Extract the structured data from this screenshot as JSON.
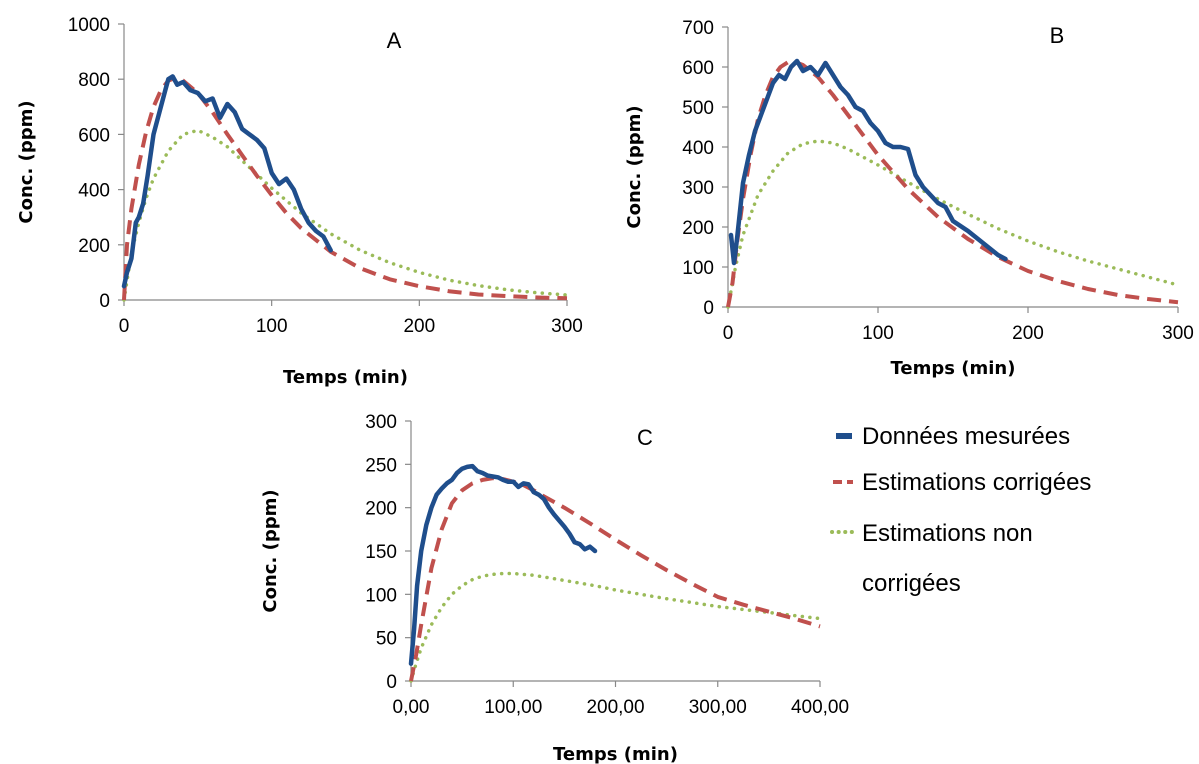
{
  "colors": {
    "measured": "#1f4e8c",
    "corrected": "#c0504d",
    "uncorrected": "#9bbb59"
  },
  "legend": {
    "placement": "right of panel C",
    "items": [
      {
        "key": "measured",
        "label": "Données mesurées"
      },
      {
        "key": "corrected",
        "label": "Estimations corrigées"
      },
      {
        "key": "uncorrected",
        "label": "Estimations non",
        "label_line2": "corrigées"
      }
    ]
  },
  "chart_data": [
    {
      "type": "line",
      "panel": "A",
      "xlabel": "Temps (min)",
      "ylabel": "Conc. (ppm)",
      "xlim": [
        0,
        300
      ],
      "ylim": [
        0,
        1000
      ],
      "xticks": [
        0,
        100,
        200,
        300
      ],
      "xtick_labels": [
        "0",
        "100",
        "200",
        "300"
      ],
      "yticks": [
        0,
        200,
        400,
        600,
        800,
        1000
      ],
      "ytick_labels": [
        "0",
        "200",
        "400",
        "600",
        "800",
        "1000"
      ],
      "grid": false,
      "series": [
        {
          "key": "measured",
          "style": "solid",
          "x": [
            0,
            2,
            5,
            8,
            10,
            13,
            16,
            20,
            24,
            28,
            30,
            33,
            36,
            40,
            45,
            50,
            55,
            60,
            65,
            70,
            75,
            80,
            85,
            90,
            95,
            100,
            105,
            110,
            115,
            120,
            125,
            130,
            135,
            140
          ],
          "y": [
            50,
            100,
            150,
            280,
            300,
            350,
            450,
            600,
            680,
            760,
            800,
            810,
            780,
            790,
            760,
            750,
            720,
            730,
            660,
            710,
            680,
            620,
            600,
            580,
            550,
            460,
            420,
            440,
            400,
            330,
            280,
            250,
            230,
            180
          ]
        },
        {
          "key": "corrected",
          "style": "dashed",
          "x": [
            0,
            2,
            5,
            10,
            15,
            20,
            25,
            30,
            35,
            40,
            50,
            60,
            70,
            80,
            90,
            100,
            110,
            120,
            140,
            160,
            180,
            200,
            220,
            240,
            260,
            280,
            300
          ],
          "y": [
            0,
            200,
            330,
            490,
            610,
            700,
            760,
            795,
            805,
            795,
            750,
            680,
            600,
            525,
            450,
            380,
            315,
            260,
            175,
            115,
            75,
            50,
            32,
            20,
            14,
            9,
            6
          ]
        },
        {
          "key": "uncorrected",
          "style": "dotted",
          "x": [
            0,
            5,
            10,
            15,
            20,
            30,
            40,
            50,
            60,
            70,
            80,
            100,
            120,
            140,
            160,
            180,
            200,
            220,
            240,
            260,
            280,
            300
          ],
          "y": [
            0,
            170,
            280,
            370,
            440,
            540,
            600,
            615,
            590,
            555,
            505,
            405,
            315,
            240,
            180,
            135,
            100,
            72,
            52,
            37,
            26,
            18
          ]
        }
      ]
    },
    {
      "type": "line",
      "panel": "B",
      "xlabel": "Temps (min)",
      "ylabel": "Conc. (ppm)",
      "xlim": [
        0,
        300
      ],
      "ylim": [
        0,
        700
      ],
      "xticks": [
        0,
        100,
        200,
        300
      ],
      "xtick_labels": [
        "0",
        "100",
        "200",
        "300"
      ],
      "yticks": [
        0,
        100,
        200,
        300,
        400,
        500,
        600,
        700
      ],
      "ytick_labels": [
        "0",
        "100",
        "200",
        "300",
        "400",
        "500",
        "600",
        "700"
      ],
      "grid": false,
      "series": [
        {
          "key": "measured",
          "style": "solid",
          "x": [
            2,
            4,
            6,
            8,
            10,
            14,
            18,
            22,
            26,
            30,
            34,
            38,
            42,
            46,
            50,
            55,
            60,
            65,
            70,
            75,
            80,
            85,
            90,
            95,
            100,
            105,
            110,
            115,
            120,
            125,
            130,
            135,
            140,
            145,
            150,
            160,
            170,
            180,
            185
          ],
          "y": [
            180,
            110,
            170,
            240,
            310,
            380,
            440,
            480,
            520,
            560,
            580,
            570,
            600,
            615,
            590,
            600,
            580,
            610,
            580,
            550,
            530,
            500,
            490,
            460,
            440,
            410,
            400,
            400,
            395,
            330,
            300,
            280,
            260,
            250,
            215,
            190,
            160,
            130,
            120
          ]
        },
        {
          "key": "corrected",
          "style": "dashed",
          "x": [
            0,
            3,
            6,
            10,
            15,
            20,
            25,
            30,
            35,
            40,
            45,
            50,
            60,
            70,
            80,
            90,
            100,
            120,
            140,
            160,
            180,
            200,
            220,
            240,
            260,
            280,
            300
          ],
          "y": [
            0,
            60,
            160,
            270,
            380,
            470,
            530,
            575,
            600,
            612,
            612,
            605,
            575,
            530,
            480,
            430,
            380,
            295,
            225,
            170,
            125,
            90,
            65,
            45,
            30,
            20,
            12
          ]
        },
        {
          "key": "uncorrected",
          "style": "dotted",
          "x": [
            0,
            5,
            10,
            20,
            30,
            40,
            50,
            60,
            70,
            80,
            100,
            120,
            140,
            160,
            180,
            200,
            220,
            240,
            260,
            280,
            300
          ],
          "y": [
            0,
            100,
            180,
            280,
            340,
            385,
            408,
            415,
            410,
            395,
            355,
            312,
            270,
            232,
            196,
            165,
            138,
            115,
            95,
            75,
            55
          ]
        }
      ]
    },
    {
      "type": "line",
      "panel": "C",
      "xlabel": "Temps (min)",
      "ylabel": "Conc. (ppm)",
      "xlim": [
        0,
        400
      ],
      "ylim": [
        0,
        300
      ],
      "xticks": [
        0,
        100,
        200,
        300,
        400
      ],
      "xtick_labels": [
        "0,00",
        "100,00",
        "200,00",
        "300,00",
        "400,00"
      ],
      "yticks": [
        0,
        50,
        100,
        150,
        200,
        250,
        300
      ],
      "ytick_labels": [
        "0",
        "50",
        "100",
        "150",
        "200",
        "250",
        "300"
      ],
      "grid": false,
      "series": [
        {
          "key": "measured",
          "style": "solid",
          "x": [
            0,
            3,
            6,
            10,
            15,
            20,
            25,
            30,
            35,
            40,
            45,
            50,
            55,
            60,
            65,
            70,
            75,
            80,
            85,
            90,
            95,
            100,
            105,
            110,
            115,
            120,
            125,
            130,
            135,
            140,
            145,
            150,
            155,
            160,
            165,
            170,
            175,
            180
          ],
          "y": [
            20,
            60,
            110,
            150,
            180,
            200,
            215,
            222,
            228,
            232,
            240,
            245,
            247,
            248,
            242,
            240,
            237,
            236,
            235,
            232,
            230,
            230,
            224,
            228,
            227,
            218,
            215,
            210,
            200,
            192,
            185,
            178,
            170,
            160,
            158,
            152,
            155,
            150
          ]
        },
        {
          "key": "corrected",
          "style": "dashed",
          "x": [
            0,
            5,
            10,
            20,
            30,
            40,
            50,
            60,
            70,
            80,
            90,
            100,
            110,
            120,
            130,
            150,
            175,
            200,
            225,
            250,
            275,
            300,
            325,
            350,
            375,
            400
          ],
          "y": [
            0,
            30,
            65,
            130,
            175,
            205,
            220,
            228,
            232,
            234,
            233,
            230,
            226,
            220,
            213,
            200,
            182,
            163,
            145,
            128,
            112,
            97,
            88,
            80,
            72,
            63
          ]
        },
        {
          "key": "uncorrected",
          "style": "dotted",
          "x": [
            0,
            5,
            10,
            20,
            30,
            40,
            50,
            60,
            70,
            80,
            90,
            100,
            110,
            120,
            140,
            160,
            180,
            200,
            250,
            300,
            350,
            400
          ],
          "y": [
            0,
            20,
            38,
            65,
            85,
            100,
            110,
            117,
            121,
            123,
            124,
            124,
            123,
            122,
            118,
            114,
            110,
            105,
            95,
            86,
            79,
            72
          ]
        }
      ]
    }
  ]
}
